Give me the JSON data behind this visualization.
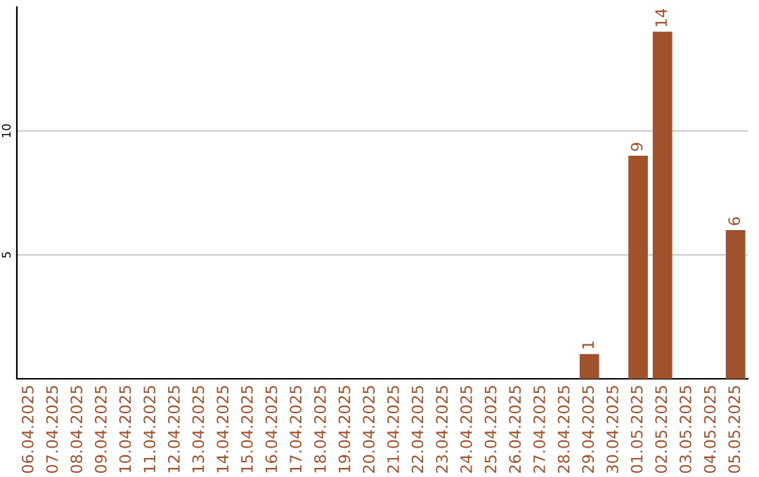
{
  "chart_data": {
    "type": "bar",
    "categories": [
      "06.04.2025",
      "07.04.2025",
      "08.04.2025",
      "09.04.2025",
      "10.04.2025",
      "11.04.2025",
      "12.04.2025",
      "13.04.2025",
      "14.04.2025",
      "15.04.2025",
      "16.04.2025",
      "17.04.2025",
      "18.04.2025",
      "19.04.2025",
      "20.04.2025",
      "21.04.2025",
      "22.04.2025",
      "23.04.2025",
      "24.04.2025",
      "25.04.2025",
      "26.04.2025",
      "27.04.2025",
      "28.04.2025",
      "29.04.2025",
      "30.04.2025",
      "01.05.2025",
      "02.05.2025",
      "03.05.2025",
      "04.05.2025",
      "05.05.2025"
    ],
    "values": [
      0,
      0,
      0,
      0,
      0,
      0,
      0,
      0,
      0,
      0,
      0,
      0,
      0,
      0,
      0,
      0,
      0,
      0,
      0,
      0,
      0,
      0,
      0,
      1,
      0,
      9,
      14,
      0,
      0,
      6
    ],
    "value_labels": [
      null,
      null,
      null,
      null,
      null,
      null,
      null,
      null,
      null,
      null,
      null,
      null,
      null,
      null,
      null,
      null,
      null,
      null,
      null,
      null,
      null,
      null,
      null,
      "1",
      null,
      "9",
      "14",
      null,
      null,
      "6"
    ],
    "color": "#a0522d",
    "ylim": [
      0,
      15
    ],
    "yticks": [
      5,
      10
    ],
    "grid": "y"
  }
}
